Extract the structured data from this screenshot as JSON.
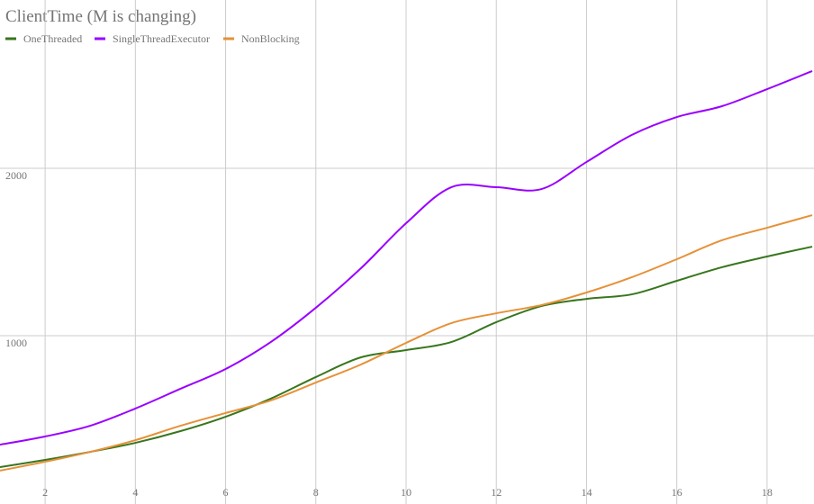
{
  "chart_data": {
    "type": "line",
    "title": "ClientTime (M is changing)",
    "x": [
      1,
      2,
      3,
      4,
      5,
      6,
      7,
      8,
      9,
      10,
      11,
      12,
      13,
      14,
      15,
      16,
      17,
      18,
      19
    ],
    "series": [
      {
        "name": "OneThreaded",
        "color": "#38761d",
        "values": [
          215,
          258,
          306,
          360,
          430,
          516,
          624,
          753,
          871,
          914,
          962,
          1081,
          1177,
          1220,
          1247,
          1328,
          1409,
          1473,
          1532
        ]
      },
      {
        "name": "SingleThreadExecutor",
        "color": "#9900ff",
        "values": [
          349,
          398,
          462,
          565,
          683,
          801,
          962,
          1167,
          1403,
          1672,
          1887,
          1887,
          1876,
          2038,
          2199,
          2306,
          2371,
          2473,
          2581
        ]
      },
      {
        "name": "NonBlocking",
        "color": "#e69138",
        "values": [
          194,
          247,
          306,
          376,
          462,
          538,
          613,
          720,
          828,
          957,
          1075,
          1134,
          1183,
          1258,
          1349,
          1457,
          1570,
          1645,
          1720
        ]
      }
    ],
    "xlim": [
      1,
      19
    ],
    "xticks": [
      2,
      4,
      6,
      8,
      10,
      12,
      14,
      16,
      18
    ],
    "ylim": [
      0,
      3000
    ],
    "yticks": [
      1000,
      2000
    ],
    "grid": true,
    "legend": "top-left"
  }
}
